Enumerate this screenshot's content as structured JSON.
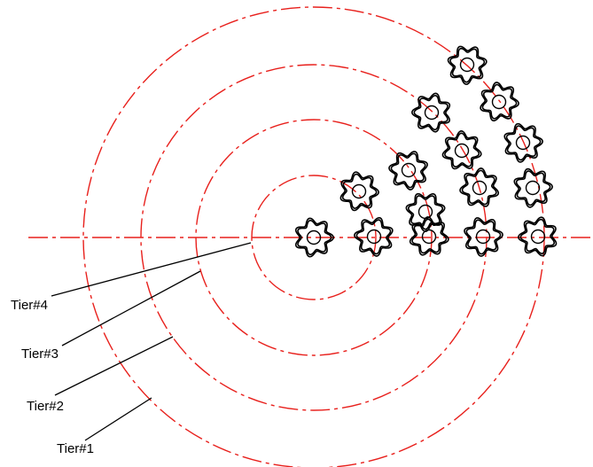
{
  "diagram": {
    "tiers": [
      {
        "label": "Tier#4"
      },
      {
        "label": "Tier#3"
      },
      {
        "label": "Tier#2"
      },
      {
        "label": "Tier#1"
      }
    ],
    "colors": {
      "centerline": "#e8201c",
      "tier_circle": "#e8201c",
      "rotor": "#000000",
      "leader": "#000000"
    },
    "rotor_shape": "lobed-gear"
  }
}
